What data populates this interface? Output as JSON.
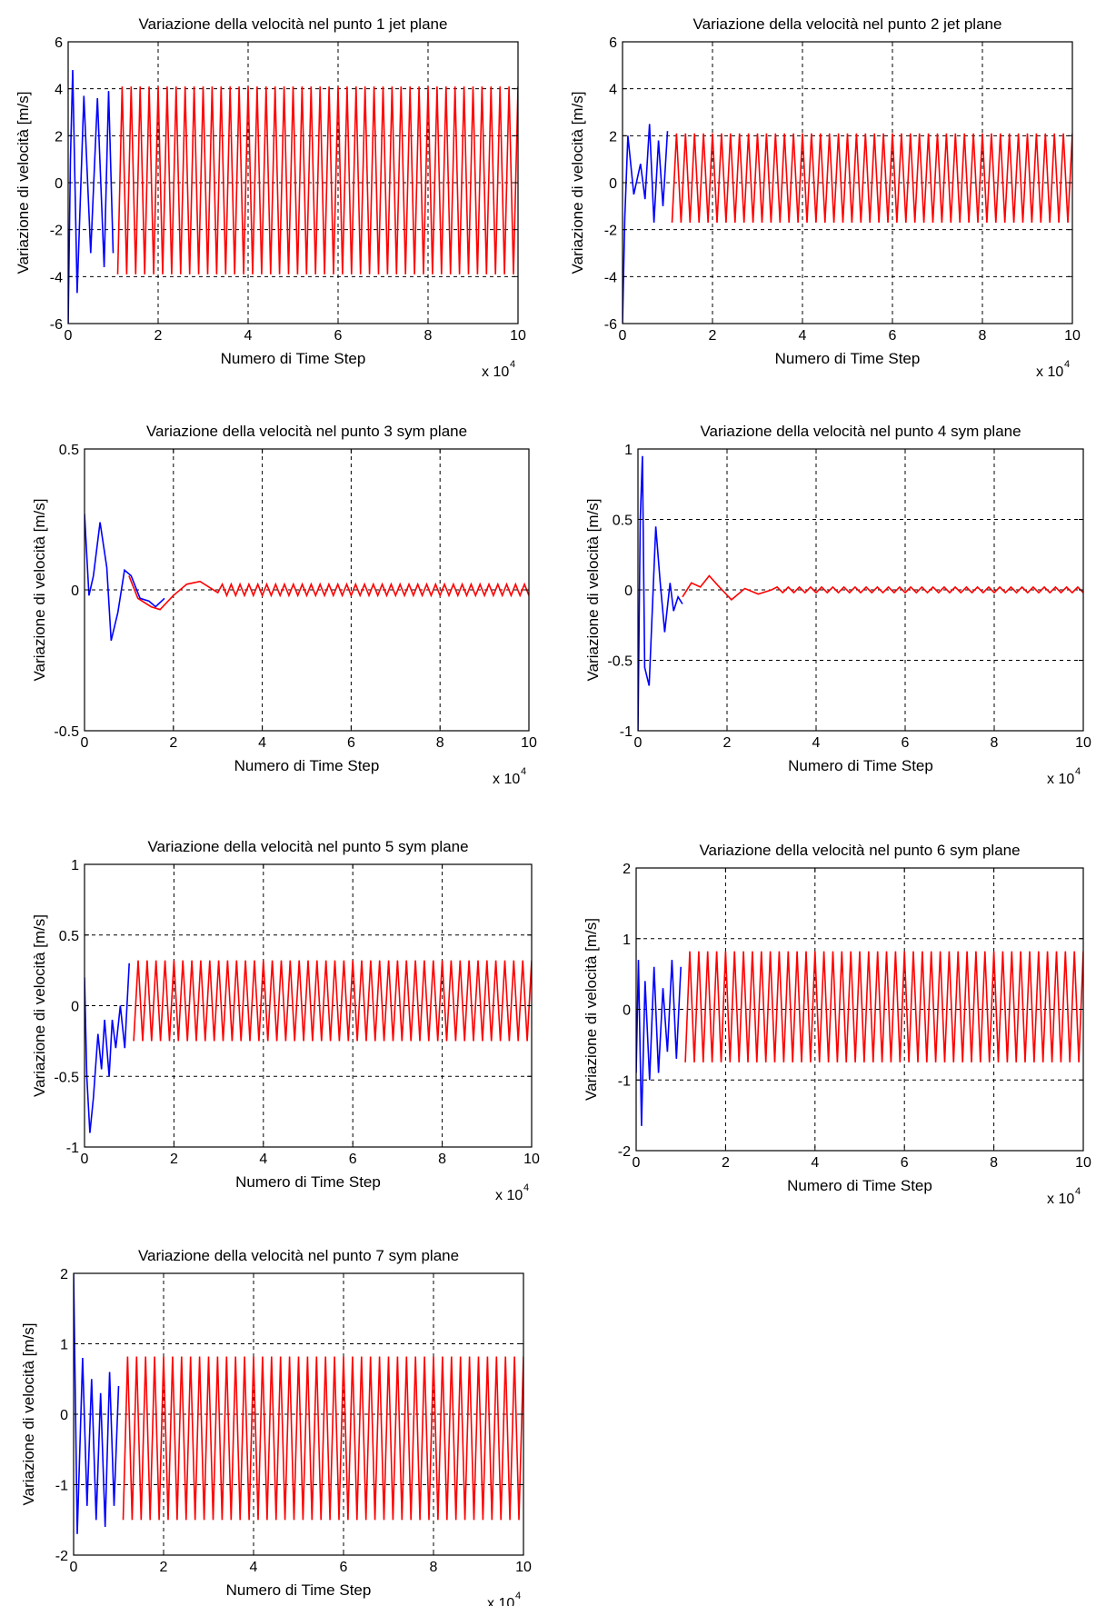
{
  "chart_data": [
    {
      "type": "line",
      "title": "Variazione della velocità nel punto 1 jet plane",
      "xlabel": "Numero di Time Step",
      "ylabel": "Variazione di velocità [m/s]",
      "xlim": [
        0,
        10
      ],
      "ylim": [
        -6,
        6
      ],
      "xticks": [
        "0",
        "2",
        "4",
        "6",
        "8",
        "10"
      ],
      "yticks": [
        "-6",
        "-4",
        "-2",
        "0",
        "2",
        "4",
        "6"
      ],
      "x_multiplier": "x 10",
      "x_multiplier_exp": "4",
      "grid": true,
      "series": [
        {
          "color": "#0000ff",
          "x_range": [
            0,
            1.0
          ],
          "keypoints": [
            [
              0,
              -6
            ],
            [
              0.05,
              1
            ],
            [
              0.1,
              4.8
            ],
            [
              0.2,
              -4.7
            ],
            [
              0.35,
              3.7
            ],
            [
              0.5,
              -3.0
            ],
            [
              0.65,
              3.6
            ],
            [
              0.8,
              -3.6
            ],
            [
              0.9,
              3.9
            ],
            [
              1.0,
              -3.0
            ]
          ]
        },
        {
          "color": "#ff0000",
          "x_range": [
            1.0,
            10
          ],
          "amplitude_pos": 4.1,
          "amplitude_neg": -3.9,
          "period": 0.2
        }
      ]
    },
    {
      "type": "line",
      "title": "Variazione della velocità nel punto 2 jet plane",
      "xlabel": "Numero di Time Step",
      "ylabel": "Variazione di velocità [m/s]",
      "xlim": [
        0,
        10
      ],
      "ylim": [
        -6,
        6
      ],
      "xticks": [
        "0",
        "2",
        "4",
        "6",
        "8",
        "10"
      ],
      "yticks": [
        "-6",
        "-4",
        "-2",
        "0",
        "2",
        "4",
        "6"
      ],
      "x_multiplier": "x 10",
      "x_multiplier_exp": "4",
      "grid": true,
      "series": [
        {
          "color": "#0000ff",
          "x_range": [
            0,
            1.0
          ],
          "keypoints": [
            [
              0,
              -6
            ],
            [
              0.05,
              -1.5
            ],
            [
              0.12,
              2.0
            ],
            [
              0.25,
              -0.5
            ],
            [
              0.4,
              0.8
            ],
            [
              0.5,
              -0.7
            ],
            [
              0.6,
              2.5
            ],
            [
              0.7,
              -1.7
            ],
            [
              0.8,
              1.8
            ],
            [
              0.9,
              -1.0
            ],
            [
              1.0,
              2.2
            ]
          ]
        },
        {
          "color": "#ff0000",
          "x_range": [
            1.0,
            10
          ],
          "amplitude_pos": 2.1,
          "amplitude_neg": -1.7,
          "period": 0.2
        }
      ]
    },
    {
      "type": "line",
      "title": "Variazione della velocità nel punto 3 sym plane",
      "xlabel": "Numero di Time Step",
      "ylabel": "Variazione di velocità [m/s]",
      "xlim": [
        0,
        10
      ],
      "ylim": [
        -0.5,
        0.5
      ],
      "xticks": [
        "0",
        "2",
        "4",
        "6",
        "8",
        "10"
      ],
      "yticks": [
        "-0.5",
        "0",
        "0.5"
      ],
      "x_multiplier": "x 10",
      "x_multiplier_exp": "4",
      "grid": true,
      "series": [
        {
          "color": "#0000ff",
          "x_range": [
            0,
            1.8
          ],
          "keypoints": [
            [
              0,
              0.27
            ],
            [
              0.1,
              -0.02
            ],
            [
              0.2,
              0.05
            ],
            [
              0.35,
              0.24
            ],
            [
              0.5,
              0.08
            ],
            [
              0.6,
              -0.18
            ],
            [
              0.75,
              -0.08
            ],
            [
              0.9,
              0.07
            ],
            [
              1.05,
              0.05
            ],
            [
              1.25,
              -0.03
            ],
            [
              1.45,
              -0.04
            ],
            [
              1.6,
              -0.06
            ],
            [
              1.8,
              -0.03
            ]
          ]
        },
        {
          "color": "#ff0000",
          "x_range": [
            1.0,
            10
          ],
          "keypoints": [
            [
              1.0,
              0.05
            ],
            [
              1.2,
              -0.03
            ],
            [
              1.5,
              -0.06
            ],
            [
              1.7,
              -0.07
            ],
            [
              2.0,
              -0.02
            ],
            [
              2.3,
              0.02
            ],
            [
              2.6,
              0.03
            ],
            [
              3.0,
              -0.01
            ]
          ],
          "decay_amplitude": 0.02,
          "period": 0.2
        }
      ]
    },
    {
      "type": "line",
      "title": "Variazione della velocità nel punto 4 sym plane",
      "xlabel": "Numero di Time Step",
      "ylabel": "Variazione di velocità [m/s]",
      "xlim": [
        0,
        10
      ],
      "ylim": [
        -1,
        1
      ],
      "xticks": [
        "0",
        "2",
        "4",
        "6",
        "8",
        "10"
      ],
      "yticks": [
        "-1",
        "-0.5",
        "0",
        "0.5",
        "1"
      ],
      "x_multiplier": "x 10",
      "x_multiplier_exp": "4",
      "grid": true,
      "series": [
        {
          "color": "#0000ff",
          "x_range": [
            0,
            1.0
          ],
          "keypoints": [
            [
              0,
              -1
            ],
            [
              0.05,
              0.5
            ],
            [
              0.1,
              0.95
            ],
            [
              0.15,
              -0.55
            ],
            [
              0.25,
              -0.68
            ],
            [
              0.4,
              0.45
            ],
            [
              0.5,
              0.05
            ],
            [
              0.6,
              -0.3
            ],
            [
              0.72,
              0.05
            ],
            [
              0.8,
              -0.15
            ],
            [
              0.9,
              -0.05
            ],
            [
              1.0,
              -0.1
            ]
          ]
        },
        {
          "color": "#ff0000",
          "x_range": [
            1.0,
            10
          ],
          "keypoints": [
            [
              1.0,
              -0.05
            ],
            [
              1.2,
              0.05
            ],
            [
              1.4,
              0.02
            ],
            [
              1.6,
              0.1
            ],
            [
              1.8,
              0.03
            ],
            [
              2.1,
              -0.07
            ],
            [
              2.4,
              0.01
            ],
            [
              2.7,
              -0.03
            ],
            [
              3.0,
              0.0
            ]
          ],
          "decay_amplitude": 0.02,
          "period": 0.25
        }
      ]
    },
    {
      "type": "line",
      "title": "Variazione della velocità nel punto 5 sym plane",
      "xlabel": "Numero di Time Step",
      "ylabel": "Variazione di velocità [m/s]",
      "xlim": [
        0,
        10
      ],
      "ylim": [
        -1,
        1
      ],
      "xticks": [
        "0",
        "2",
        "4",
        "6",
        "8",
        "10"
      ],
      "yticks": [
        "-1",
        "-0.5",
        "0",
        "0.5",
        "1"
      ],
      "x_multiplier": "x 10",
      "x_multiplier_exp": "4",
      "grid": true,
      "series": [
        {
          "color": "#0000ff",
          "x_range": [
            0,
            1.0
          ],
          "keypoints": [
            [
              0,
              0.2
            ],
            [
              0.05,
              -0.5
            ],
            [
              0.12,
              -0.9
            ],
            [
              0.2,
              -0.65
            ],
            [
              0.3,
              -0.2
            ],
            [
              0.38,
              -0.45
            ],
            [
              0.45,
              -0.1
            ],
            [
              0.55,
              -0.5
            ],
            [
              0.62,
              -0.1
            ],
            [
              0.7,
              -0.3
            ],
            [
              0.8,
              0.0
            ],
            [
              0.9,
              -0.3
            ],
            [
              1.0,
              0.3
            ]
          ]
        },
        {
          "color": "#ff0000",
          "x_range": [
            1.0,
            10
          ],
          "amplitude_pos": 0.32,
          "amplitude_neg": -0.25,
          "period": 0.2
        }
      ]
    },
    {
      "type": "line",
      "title": "Variazione della velocità nel punto 6 sym plane",
      "xlabel": "Numero di Time Step",
      "ylabel": "Variazione di velocità [m/s]",
      "xlim": [
        0,
        10
      ],
      "ylim": [
        -2,
        2
      ],
      "xticks": [
        "0",
        "2",
        "4",
        "6",
        "8",
        "10"
      ],
      "yticks": [
        "-2",
        "-1",
        "0",
        "1",
        "2"
      ],
      "x_multiplier": "x 10",
      "x_multiplier_exp": "4",
      "grid": true,
      "series": [
        {
          "color": "#0000ff",
          "x_range": [
            0,
            1.0
          ],
          "keypoints": [
            [
              0,
              -0.9
            ],
            [
              0.05,
              0.7
            ],
            [
              0.12,
              -1.65
            ],
            [
              0.2,
              0.4
            ],
            [
              0.3,
              -1.0
            ],
            [
              0.4,
              0.6
            ],
            [
              0.5,
              -0.9
            ],
            [
              0.6,
              0.3
            ],
            [
              0.7,
              -0.6
            ],
            [
              0.8,
              0.7
            ],
            [
              0.9,
              -0.7
            ],
            [
              1.0,
              0.6
            ]
          ]
        },
        {
          "color": "#ff0000",
          "x_range": [
            1.0,
            10
          ],
          "amplitude_pos": 0.82,
          "amplitude_neg": -0.75,
          "period": 0.2
        }
      ]
    },
    {
      "type": "line",
      "title": "Variazione della velocità nel punto 7 sym plane",
      "xlabel": "Numero di Time Step",
      "ylabel": "Variazione di velocità [m/s]",
      "xlim": [
        0,
        10
      ],
      "ylim": [
        -2,
        2
      ],
      "xticks": [
        "0",
        "2",
        "4",
        "6",
        "8",
        "10"
      ],
      "yticks": [
        "-2",
        "-1",
        "0",
        "1",
        "2"
      ],
      "x_multiplier": "x 10",
      "x_multiplier_exp": "4",
      "grid": true,
      "series": [
        {
          "color": "#0000ff",
          "x_range": [
            0,
            1.0
          ],
          "keypoints": [
            [
              0,
              2
            ],
            [
              0.08,
              -1.7
            ],
            [
              0.2,
              0.8
            ],
            [
              0.3,
              -1.3
            ],
            [
              0.4,
              0.5
            ],
            [
              0.5,
              -1.5
            ],
            [
              0.6,
              0.3
            ],
            [
              0.7,
              -1.6
            ],
            [
              0.8,
              0.6
            ],
            [
              0.9,
              -1.3
            ],
            [
              1.0,
              0.4
            ]
          ]
        },
        {
          "color": "#ff0000",
          "x_range": [
            1.0,
            10
          ],
          "amplitude_pos": 0.82,
          "amplitude_neg": -1.5,
          "period": 0.2
        }
      ]
    }
  ]
}
